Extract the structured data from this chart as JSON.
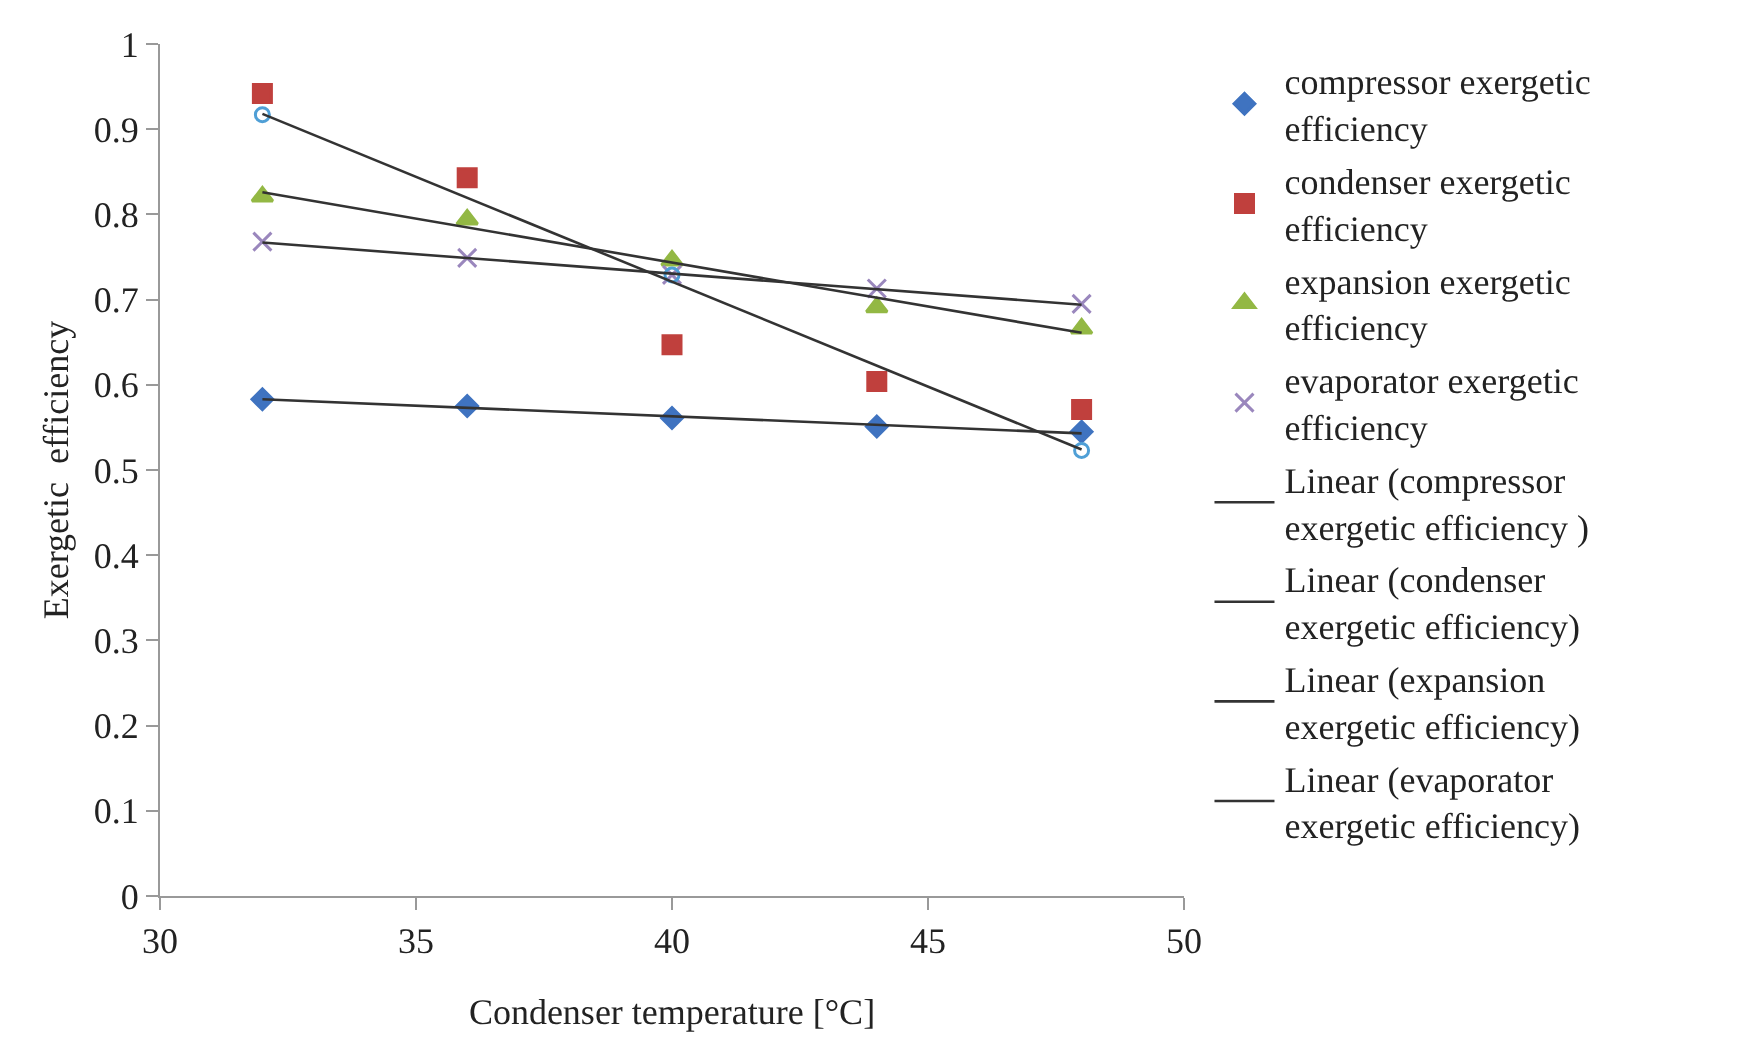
{
  "chart_data": {
    "type": "scatter",
    "xlabel": "Condenser temperature [°C]",
    "ylabel": "Exergetic  efficiency",
    "xlim": [
      30,
      50
    ],
    "xticks": [
      30,
      35,
      40,
      45,
      50
    ],
    "ylim": [
      0,
      1
    ],
    "yticks": [
      0,
      0.1,
      0.2,
      0.3,
      0.4,
      0.5,
      0.6,
      0.7,
      0.8,
      0.9,
      1
    ],
    "grid": false,
    "legend": "right",
    "x": [
      32,
      36,
      40,
      44,
      48
    ],
    "series": [
      {
        "name": "compressor exergetic efficiency",
        "color": "#3f73c0",
        "marker": "diamond",
        "values": [
          0.583,
          0.575,
          0.561,
          0.551,
          0.545
        ]
      },
      {
        "name": "condenser exergetic efficiency",
        "color": "#c0403d",
        "marker": "square",
        "values": [
          0.942,
          0.843,
          0.647,
          0.604,
          0.571
        ]
      },
      {
        "name": "expansion exergetic efficiency",
        "color": "#93b844",
        "marker": "triangle",
        "values": [
          0.821,
          0.794,
          0.746,
          0.691,
          0.666
        ]
      },
      {
        "name": "evaporator exergetic efficiency",
        "color": "#9a87bd",
        "marker": "cross",
        "values": [
          0.768,
          0.749,
          0.729,
          0.713,
          0.695
        ]
      },
      {
        "color": "#4f9fd6",
        "marker": "circle",
        "x": [
          32,
          40,
          48
        ],
        "values": [
          0.917,
          0.729,
          0.523
        ]
      },
      {
        "type": "line",
        "name": "Linear (compressor exergetic efficiency )",
        "color": "#333333",
        "x": [
          32,
          48
        ],
        "values": [
          0.583,
          0.543
        ]
      },
      {
        "type": "line",
        "name": "Linear (condenser exergetic efficiency)",
        "color": "#333333",
        "x": [
          32,
          48
        ],
        "values": [
          0.918,
          0.524
        ]
      },
      {
        "type": "line",
        "name": "Linear (expansion exergetic efficiency)",
        "color": "#333333",
        "x": [
          32,
          48
        ],
        "values": [
          0.826,
          0.661
        ]
      },
      {
        "type": "line",
        "name": "Linear (evaporator exergetic efficiency)",
        "color": "#333333",
        "x": [
          32,
          48
        ],
        "values": [
          0.767,
          0.694
        ]
      }
    ]
  }
}
